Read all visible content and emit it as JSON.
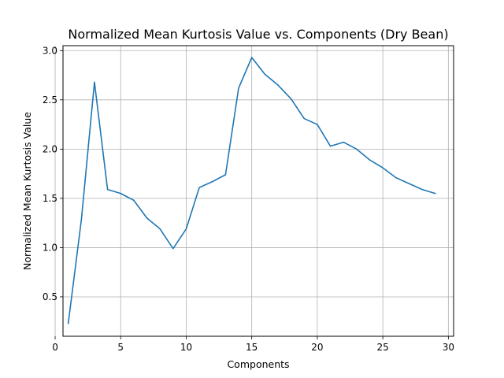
{
  "chart_data": {
    "type": "line",
    "title": "Normalized Mean Kurtosis Value vs. Components (Dry Bean)",
    "xlabel": "Components",
    "ylabel": "Normalized Mean Kurtosis Value",
    "xlim": [
      0,
      30
    ],
    "ylim": [
      0.1,
      3.05
    ],
    "xticks": [
      0,
      5,
      10,
      15,
      20,
      25,
      30
    ],
    "yticks": [
      0.5,
      1.0,
      1.5,
      2.0,
      2.5,
      3.0
    ],
    "xtick_labels": [
      "0",
      "5",
      "10",
      "15",
      "20",
      "25",
      "30"
    ],
    "ytick_labels": [
      "0.5",
      "1.0",
      "1.5",
      "2.0",
      "2.5",
      "3.0"
    ],
    "grid": true,
    "line_color": "#1f77b4",
    "series": [
      {
        "x": [
          1,
          2,
          3,
          4,
          5,
          6,
          7,
          8,
          9,
          10,
          11,
          12,
          13,
          14,
          15,
          16,
          17,
          18,
          19,
          20,
          21,
          22,
          23,
          24,
          25,
          26,
          27,
          28,
          29
        ],
        "values": [
          0.23,
          1.28,
          2.68,
          1.59,
          1.55,
          1.48,
          1.3,
          1.19,
          0.99,
          1.19,
          1.61,
          1.67,
          1.74,
          2.62,
          2.93,
          2.76,
          2.65,
          2.51,
          2.31,
          2.25,
          2.03,
          2.07,
          2.0,
          1.89,
          1.81,
          1.71,
          1.65,
          1.59,
          1.55
        ]
      }
    ]
  }
}
